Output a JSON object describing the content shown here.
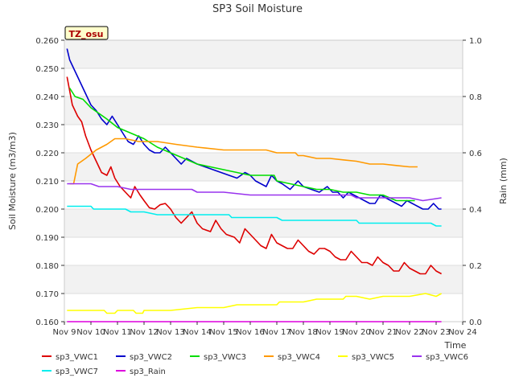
{
  "chart_data": {
    "type": "line",
    "title": "SP3 Soil Moisture",
    "ylabel": "Soil Moisture (m3/m3)",
    "y2label": "Rain (mm)",
    "xlabel": "Time",
    "site_label": "TZ_osu",
    "xlim": [
      9,
      24
    ],
    "ylim": [
      0.16,
      0.26
    ],
    "y2lim": [
      0.0,
      1.0
    ],
    "x_ticks": [
      {
        "v": 9,
        "label": "Nov 9"
      },
      {
        "v": 10,
        "label": "Nov 10"
      },
      {
        "v": 11,
        "label": "Nov 11"
      },
      {
        "v": 12,
        "label": "Nov 12"
      },
      {
        "v": 13,
        "label": "Nov 13"
      },
      {
        "v": 14,
        "label": "Nov 14"
      },
      {
        "v": 15,
        "label": "Nov 15"
      },
      {
        "v": 16,
        "label": "Nov 16"
      },
      {
        "v": 17,
        "label": "Nov 17"
      },
      {
        "v": 18,
        "label": "Nov 18"
      },
      {
        "v": 19,
        "label": "Nov 19"
      },
      {
        "v": 20,
        "label": "Nov 20"
      },
      {
        "v": 21,
        "label": "Nov 21"
      },
      {
        "v": 22,
        "label": "Nov 22"
      },
      {
        "v": 23,
        "label": "Nov 23"
      },
      {
        "v": 24,
        "label": "Nov 24"
      }
    ],
    "y_ticks": [
      0.16,
      0.17,
      0.18,
      0.19,
      0.2,
      0.21,
      0.22,
      0.23,
      0.24,
      0.25,
      0.26
    ],
    "y_tick_labels": [
      "0.160",
      "0.170",
      "0.180",
      "0.190",
      "0.200",
      "0.210",
      "0.220",
      "0.230",
      "0.240",
      "0.250",
      "0.260"
    ],
    "y2_ticks": [
      0.0,
      0.2,
      0.4,
      0.6,
      0.8,
      1.0
    ],
    "y2_tick_labels": [
      "0.0",
      "0.2",
      "0.4",
      "0.6",
      "0.8",
      "1.0"
    ],
    "series": [
      {
        "name": "sp3_VWC1",
        "color": "#dd0000",
        "axis": "left",
        "points": [
          [
            9.1,
            0.247
          ],
          [
            9.3,
            0.237
          ],
          [
            9.5,
            0.233
          ],
          [
            9.65,
            0.231
          ],
          [
            9.8,
            0.226
          ],
          [
            10.0,
            0.221
          ],
          [
            10.2,
            0.217
          ],
          [
            10.4,
            0.213
          ],
          [
            10.6,
            0.212
          ],
          [
            10.75,
            0.215
          ],
          [
            10.9,
            0.211
          ],
          [
            11.1,
            0.208
          ],
          [
            11.3,
            0.206
          ],
          [
            11.5,
            0.204
          ],
          [
            11.65,
            0.208
          ],
          [
            11.85,
            0.205
          ],
          [
            12.0,
            0.203
          ],
          [
            12.2,
            0.2005
          ],
          [
            12.4,
            0.2
          ],
          [
            12.6,
            0.2015
          ],
          [
            12.8,
            0.202
          ],
          [
            13.0,
            0.2
          ],
          [
            13.2,
            0.197
          ],
          [
            13.4,
            0.195
          ],
          [
            13.6,
            0.197
          ],
          [
            13.8,
            0.199
          ],
          [
            14.0,
            0.195
          ],
          [
            14.2,
            0.193
          ],
          [
            14.5,
            0.192
          ],
          [
            14.7,
            0.196
          ],
          [
            14.9,
            0.193
          ],
          [
            15.1,
            0.191
          ],
          [
            15.4,
            0.19
          ],
          [
            15.6,
            0.188
          ],
          [
            15.8,
            0.193
          ],
          [
            16.0,
            0.191
          ],
          [
            16.2,
            0.189
          ],
          [
            16.4,
            0.187
          ],
          [
            16.6,
            0.186
          ],
          [
            16.8,
            0.191
          ],
          [
            17.0,
            0.188
          ],
          [
            17.2,
            0.187
          ],
          [
            17.4,
            0.186
          ],
          [
            17.6,
            0.186
          ],
          [
            17.8,
            0.189
          ],
          [
            18.0,
            0.187
          ],
          [
            18.2,
            0.185
          ],
          [
            18.4,
            0.184
          ],
          [
            18.6,
            0.186
          ],
          [
            18.8,
            0.186
          ],
          [
            19.0,
            0.185
          ],
          [
            19.2,
            0.183
          ],
          [
            19.4,
            0.182
          ],
          [
            19.6,
            0.182
          ],
          [
            19.8,
            0.185
          ],
          [
            20.0,
            0.183
          ],
          [
            20.2,
            0.181
          ],
          [
            20.4,
            0.181
          ],
          [
            20.6,
            0.18
          ],
          [
            20.8,
            0.183
          ],
          [
            21.0,
            0.181
          ],
          [
            21.2,
            0.18
          ],
          [
            21.4,
            0.178
          ],
          [
            21.6,
            0.178
          ],
          [
            21.8,
            0.181
          ],
          [
            22.0,
            0.179
          ],
          [
            22.2,
            0.178
          ],
          [
            22.4,
            0.177
          ],
          [
            22.6,
            0.177
          ],
          [
            22.8,
            0.18
          ],
          [
            23.0,
            0.178
          ],
          [
            23.2,
            0.177
          ]
        ]
      },
      {
        "name": "sp3_VWC2",
        "color": "#0000cc",
        "axis": "left",
        "points": [
          [
            9.1,
            0.257
          ],
          [
            9.2,
            0.253
          ],
          [
            9.4,
            0.249
          ],
          [
            9.6,
            0.245
          ],
          [
            9.8,
            0.241
          ],
          [
            10.0,
            0.237
          ],
          [
            10.2,
            0.235
          ],
          [
            10.4,
            0.232
          ],
          [
            10.6,
            0.23
          ],
          [
            10.8,
            0.233
          ],
          [
            11.0,
            0.23
          ],
          [
            11.2,
            0.227
          ],
          [
            11.4,
            0.224
          ],
          [
            11.6,
            0.223
          ],
          [
            11.8,
            0.226
          ],
          [
            12.0,
            0.223
          ],
          [
            12.2,
            0.221
          ],
          [
            12.4,
            0.22
          ],
          [
            12.6,
            0.22
          ],
          [
            12.8,
            0.222
          ],
          [
            13.0,
            0.22
          ],
          [
            13.2,
            0.218
          ],
          [
            13.4,
            0.216
          ],
          [
            13.6,
            0.218
          ],
          [
            13.8,
            0.217
          ],
          [
            14.0,
            0.216
          ],
          [
            14.3,
            0.215
          ],
          [
            14.6,
            0.214
          ],
          [
            14.9,
            0.213
          ],
          [
            15.2,
            0.212
          ],
          [
            15.5,
            0.211
          ],
          [
            15.8,
            0.213
          ],
          [
            16.0,
            0.212
          ],
          [
            16.2,
            0.21
          ],
          [
            16.4,
            0.209
          ],
          [
            16.6,
            0.208
          ],
          [
            16.8,
            0.212
          ],
          [
            17.0,
            0.21
          ],
          [
            17.2,
            0.209
          ],
          [
            17.5,
            0.207
          ],
          [
            17.8,
            0.21
          ],
          [
            18.0,
            0.208
          ],
          [
            18.3,
            0.207
          ],
          [
            18.6,
            0.206
          ],
          [
            18.9,
            0.208
          ],
          [
            19.1,
            0.206
          ],
          [
            19.3,
            0.206
          ],
          [
            19.5,
            0.204
          ],
          [
            19.7,
            0.206
          ],
          [
            19.9,
            0.205
          ],
          [
            20.1,
            0.204
          ],
          [
            20.3,
            0.203
          ],
          [
            20.5,
            0.202
          ],
          [
            20.7,
            0.202
          ],
          [
            20.9,
            0.205
          ],
          [
            21.1,
            0.204
          ],
          [
            21.3,
            0.203
          ],
          [
            21.5,
            0.202
          ],
          [
            21.7,
            0.201
          ],
          [
            21.9,
            0.203
          ],
          [
            22.1,
            0.202
          ],
          [
            22.3,
            0.201
          ],
          [
            22.5,
            0.2
          ],
          [
            22.7,
            0.2
          ],
          [
            22.9,
            0.202
          ],
          [
            23.1,
            0.2
          ],
          [
            23.2,
            0.2
          ]
        ]
      },
      {
        "name": "sp3_VWC3",
        "color": "#00dd00",
        "axis": "left",
        "points": [
          [
            9.2,
            0.243
          ],
          [
            9.4,
            0.24
          ],
          [
            9.7,
            0.239
          ],
          [
            10.0,
            0.236
          ],
          [
            10.3,
            0.234
          ],
          [
            10.6,
            0.232
          ],
          [
            11.0,
            0.229
          ],
          [
            11.5,
            0.227
          ],
          [
            12.0,
            0.225
          ],
          [
            12.5,
            0.222
          ],
          [
            13.0,
            0.22
          ],
          [
            13.5,
            0.218
          ],
          [
            14.0,
            0.216
          ],
          [
            14.5,
            0.215
          ],
          [
            15.0,
            0.214
          ],
          [
            15.5,
            0.213
          ],
          [
            16.0,
            0.212
          ],
          [
            16.5,
            0.212
          ],
          [
            16.9,
            0.212
          ],
          [
            17.0,
            0.21
          ],
          [
            17.5,
            0.209
          ],
          [
            18.0,
            0.208
          ],
          [
            18.5,
            0.207
          ],
          [
            19.0,
            0.207
          ],
          [
            19.5,
            0.206
          ],
          [
            20.0,
            0.206
          ],
          [
            20.5,
            0.205
          ],
          [
            21.0,
            0.205
          ],
          [
            21.5,
            0.203
          ],
          [
            22.0,
            0.203
          ],
          [
            22.2,
            0.203
          ]
        ]
      },
      {
        "name": "sp3_VWC4",
        "color": "#ff9900",
        "axis": "left",
        "points": [
          [
            9.2,
            0.209
          ],
          [
            9.35,
            0.209
          ],
          [
            9.5,
            0.216
          ],
          [
            9.8,
            0.218
          ],
          [
            10.2,
            0.221
          ],
          [
            10.6,
            0.223
          ],
          [
            10.9,
            0.225
          ],
          [
            11.3,
            0.225
          ],
          [
            11.8,
            0.224
          ],
          [
            12.5,
            0.224
          ],
          [
            13.2,
            0.223
          ],
          [
            14.0,
            0.222
          ],
          [
            15.0,
            0.221
          ],
          [
            16.0,
            0.221
          ],
          [
            16.6,
            0.221
          ],
          [
            17.0,
            0.22
          ],
          [
            17.5,
            0.22
          ],
          [
            17.7,
            0.22
          ],
          [
            17.8,
            0.219
          ],
          [
            17.95,
            0.219
          ],
          [
            18.0,
            0.219
          ],
          [
            18.5,
            0.218
          ],
          [
            19.0,
            0.218
          ],
          [
            19.5,
            0.2175
          ],
          [
            20.0,
            0.217
          ],
          [
            20.5,
            0.216
          ],
          [
            21.0,
            0.216
          ],
          [
            21.5,
            0.2155
          ],
          [
            22.0,
            0.215
          ],
          [
            22.3,
            0.215
          ]
        ]
      },
      {
        "name": "sp3_VWC5",
        "color": "#ffff00",
        "axis": "left",
        "points": [
          [
            9.1,
            0.164
          ],
          [
            10.0,
            0.164
          ],
          [
            10.5,
            0.164
          ],
          [
            10.6,
            0.163
          ],
          [
            10.9,
            0.163
          ],
          [
            11.0,
            0.164
          ],
          [
            11.6,
            0.164
          ],
          [
            11.7,
            0.163
          ],
          [
            11.95,
            0.163
          ],
          [
            12.0,
            0.164
          ],
          [
            13.0,
            0.164
          ],
          [
            14.0,
            0.165
          ],
          [
            15.0,
            0.165
          ],
          [
            15.5,
            0.166
          ],
          [
            16.0,
            0.166
          ],
          [
            17.0,
            0.166
          ],
          [
            17.1,
            0.167
          ],
          [
            18.0,
            0.167
          ],
          [
            18.5,
            0.168
          ],
          [
            19.5,
            0.168
          ],
          [
            19.6,
            0.169
          ],
          [
            20.0,
            0.169
          ],
          [
            20.5,
            0.168
          ],
          [
            21.0,
            0.169
          ],
          [
            22.0,
            0.169
          ],
          [
            22.6,
            0.17
          ],
          [
            23.0,
            0.169
          ],
          [
            23.2,
            0.17
          ]
        ]
      },
      {
        "name": "sp3_VWC6",
        "color": "#9933ee",
        "axis": "left",
        "points": [
          [
            9.1,
            0.209
          ],
          [
            9.5,
            0.209
          ],
          [
            10.0,
            0.209
          ],
          [
            10.3,
            0.208
          ],
          [
            11.0,
            0.208
          ],
          [
            11.5,
            0.207
          ],
          [
            12.0,
            0.207
          ],
          [
            13.0,
            0.207
          ],
          [
            13.8,
            0.207
          ],
          [
            14.0,
            0.206
          ],
          [
            15.0,
            0.206
          ],
          [
            16.0,
            0.205
          ],
          [
            17.0,
            0.205
          ],
          [
            18.0,
            0.205
          ],
          [
            19.0,
            0.205
          ],
          [
            19.8,
            0.205
          ],
          [
            20.0,
            0.204
          ],
          [
            21.0,
            0.204
          ],
          [
            22.0,
            0.204
          ],
          [
            22.5,
            0.203
          ],
          [
            23.2,
            0.204
          ]
        ]
      },
      {
        "name": "sp3_VWC7",
        "color": "#00eeee",
        "axis": "left",
        "points": [
          [
            9.1,
            0.201
          ],
          [
            10.0,
            0.201
          ],
          [
            10.1,
            0.2
          ],
          [
            11.0,
            0.2
          ],
          [
            11.3,
            0.2
          ],
          [
            11.5,
            0.199
          ],
          [
            12.0,
            0.199
          ],
          [
            12.5,
            0.198
          ],
          [
            14.0,
            0.198
          ],
          [
            15.2,
            0.198
          ],
          [
            15.3,
            0.197
          ],
          [
            16.5,
            0.197
          ],
          [
            17.0,
            0.197
          ],
          [
            17.2,
            0.196
          ],
          [
            18.0,
            0.196
          ],
          [
            19.0,
            0.196
          ],
          [
            20.0,
            0.196
          ],
          [
            20.1,
            0.195
          ],
          [
            21.0,
            0.195
          ],
          [
            22.0,
            0.195
          ],
          [
            22.8,
            0.195
          ],
          [
            23.0,
            0.194
          ],
          [
            23.2,
            0.194
          ]
        ]
      },
      {
        "name": "sp3_Rain",
        "color": "#dd00dd",
        "axis": "right",
        "points": [
          [
            9.1,
            0.0
          ],
          [
            23.2,
            0.0
          ]
        ]
      }
    ]
  }
}
